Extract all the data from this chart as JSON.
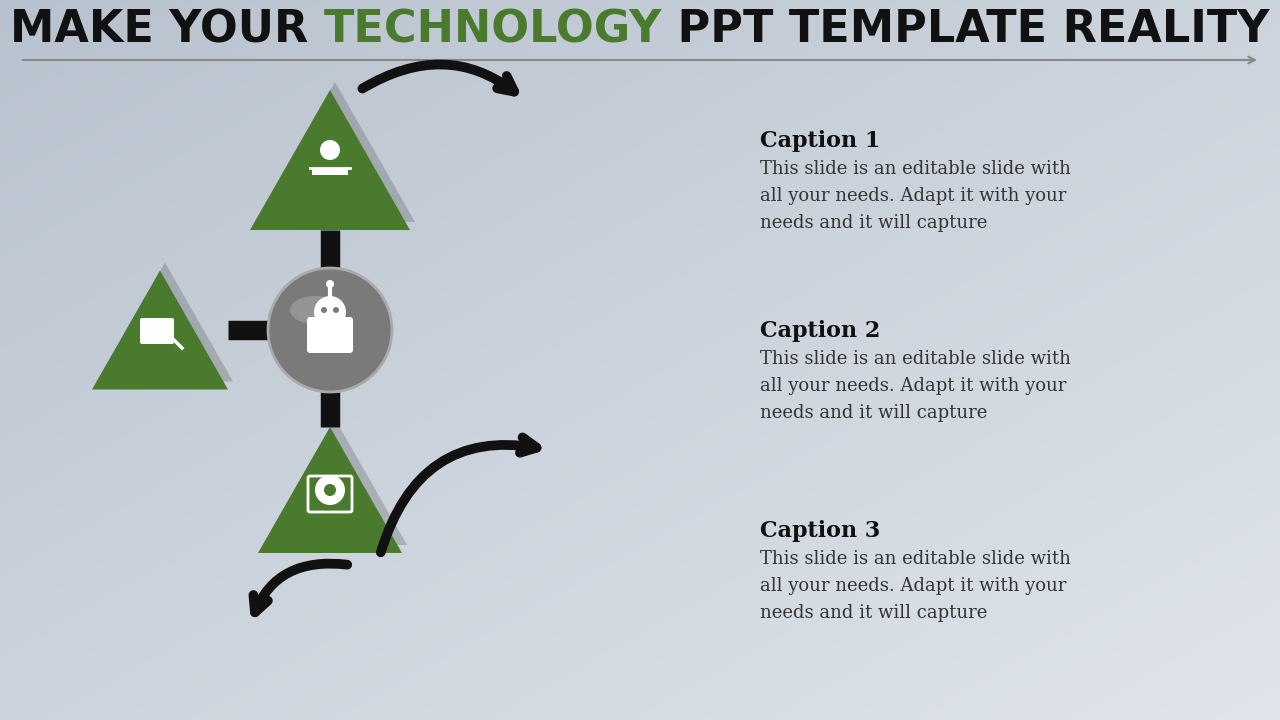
{
  "title_parts": [
    {
      "text": "MAKE YOUR ",
      "color": "#111111",
      "bold": true
    },
    {
      "text": "TECHNOLOGY",
      "color": "#4a7a2e",
      "bold": true
    },
    {
      "text": " PPT TEMPLATE REALITY",
      "color": "#111111",
      "bold": true
    }
  ],
  "bg_color_top": "#b8c2ce",
  "bg_color_bottom": "#e0e5eb",
  "triangle_color": "#4a7a2e",
  "center_circle_color": "#7a7a7a",
  "arrow_color": "#111111",
  "arrow_lw": 14,
  "captions": [
    {
      "title": "Caption 1",
      "body": "This slide is an editable slide with\nall your needs. Adapt it with your\nneeds and it will capture"
    },
    {
      "title": "Caption 2",
      "body": "This slide is an editable slide with\nall your needs. Adapt it with your\nneeds and it will capture"
    },
    {
      "title": "Caption 3",
      "body": "This slide is an editable slide with\nall your needs. Adapt it with your\nneeds and it will capture"
    }
  ],
  "divider_color": "#888888",
  "title_fontsize": 32,
  "caption_title_fontsize": 16,
  "caption_body_fontsize": 13
}
